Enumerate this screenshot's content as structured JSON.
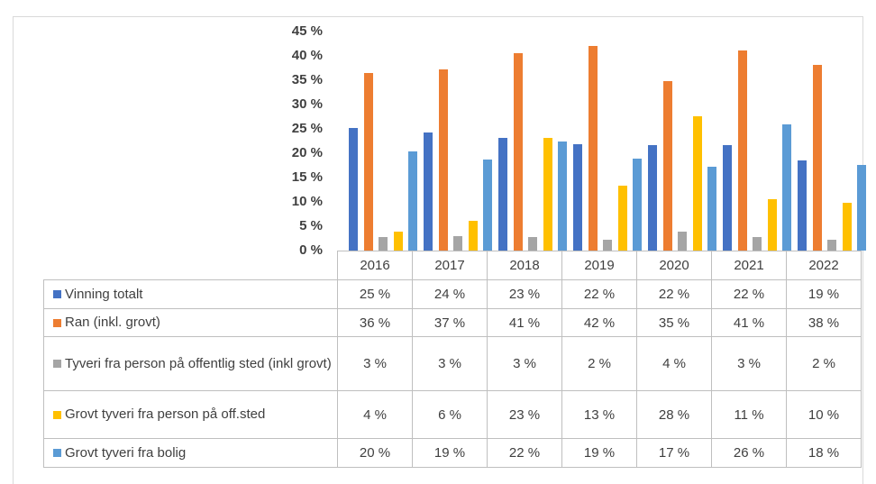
{
  "chart_data": {
    "type": "bar",
    "categories": [
      "2016",
      "2017",
      "2018",
      "2019",
      "2020",
      "2021",
      "2022"
    ],
    "series": [
      {
        "name": "Vinning totalt",
        "color": "#4472c4",
        "values": [
          25.1,
          24.2,
          23.2,
          21.9,
          21.6,
          21.6,
          18.6
        ],
        "value_labels": [
          "25 %",
          "24 %",
          "23 %",
          "22 %",
          "22 %",
          "22 %",
          "19 %"
        ]
      },
      {
        "name": "Ran (inkl. grovt)",
        "color": "#ed7d31",
        "values": [
          36.4,
          37.3,
          40.6,
          42.1,
          34.9,
          41.1,
          38.2
        ],
        "value_labels": [
          "36 %",
          "37 %",
          "41 %",
          "42 %",
          "35 %",
          "41 %",
          "38 %"
        ]
      },
      {
        "name": "Tyveri fra person på offentlig sted (inkl grovt)",
        "color": "#a5a5a5",
        "values": [
          2.8,
          2.9,
          2.7,
          2.3,
          3.9,
          2.8,
          2.3
        ],
        "value_labels": [
          "3 %",
          "3 %",
          "3 %",
          "2 %",
          "4 %",
          "3 %",
          "2 %"
        ]
      },
      {
        "name": "Grovt tyveri fra person på off.sted",
        "color": "#ffc000",
        "values": [
          3.8,
          6.2,
          23.2,
          13.4,
          27.6,
          10.6,
          9.9
        ],
        "value_labels": [
          "4 %",
          "6 %",
          "23 %",
          "13 %",
          "28 %",
          "11 %",
          "10 %"
        ]
      },
      {
        "name": "Grovt tyveri fra bolig",
        "color": "#5b9bd5",
        "values": [
          20.3,
          18.7,
          22.4,
          18.8,
          17.3,
          25.9,
          17.6
        ],
        "value_labels": [
          "20 %",
          "19 %",
          "22 %",
          "19 %",
          "17 %",
          "26 %",
          "18 %"
        ]
      }
    ],
    "ylim": [
      0,
      45
    ],
    "yticks": [
      {
        "value": 0,
        "label": "0 %"
      },
      {
        "value": 5,
        "label": "5 %"
      },
      {
        "value": 10,
        "label": "10 %"
      },
      {
        "value": 15,
        "label": "15 %"
      },
      {
        "value": 20,
        "label": "20 %"
      },
      {
        "value": 25,
        "label": "25 %"
      },
      {
        "value": 30,
        "label": "30 %"
      },
      {
        "value": 35,
        "label": "35 %"
      },
      {
        "value": 40,
        "label": "40 %"
      },
      {
        "value": 45,
        "label": "45 %"
      }
    ]
  }
}
